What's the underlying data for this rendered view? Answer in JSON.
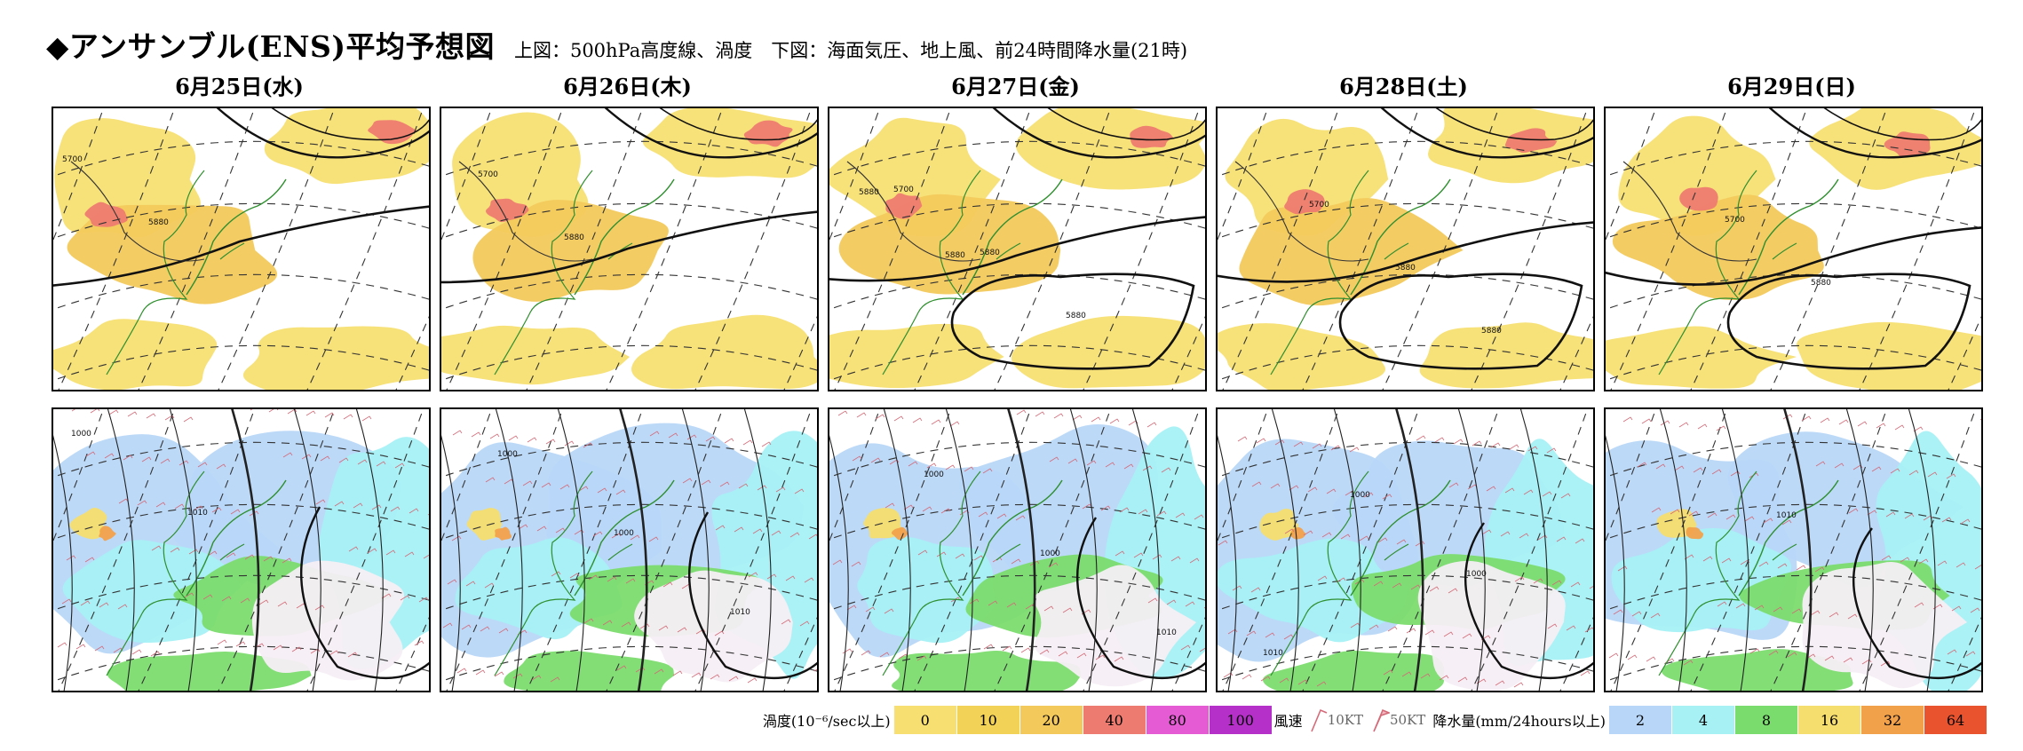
{
  "page": {
    "title": "◆アンサンブル(ENS)平均予想図",
    "subtitle": "上図：500hPa高度線、渦度　下図：海面気圧、地上風、前24時間降水量(21時)"
  },
  "days": [
    {
      "label": "6月25日(水)",
      "upper_contours": [
        "5700",
        "5880"
      ],
      "lower_contours": [
        "1000",
        "1010"
      ]
    },
    {
      "label": "6月26日(木)",
      "upper_contours": [
        "5700",
        "5880"
      ],
      "lower_contours": [
        "1000",
        "1000",
        "1010"
      ]
    },
    {
      "label": "6月27日(金)",
      "upper_contours": [
        "5700",
        "5880",
        "5880",
        "5880",
        "5880"
      ],
      "lower_contours": [
        "1000",
        "1000",
        "1010"
      ]
    },
    {
      "label": "6月28日(土)",
      "upper_contours": [
        "5700",
        "5880",
        "5880"
      ],
      "lower_contours": [
        "1000",
        "1000",
        "1010"
      ]
    },
    {
      "label": "6月29日(日)",
      "upper_contours": [
        "5700",
        "5880"
      ],
      "lower_contours": [
        "1010"
      ]
    }
  ],
  "legend": {
    "vorticity_label": "渦度(10⁻⁶/sec以上)",
    "vorticity": [
      {
        "value": "0",
        "color": "#f7df72"
      },
      {
        "value": "10",
        "color": "#f2d357"
      },
      {
        "value": "20",
        "color": "#f3c95c"
      },
      {
        "value": "40",
        "color": "#ee7b70"
      },
      {
        "value": "80",
        "color": "#e55bd4"
      },
      {
        "value": "100",
        "color": "#b530c8"
      }
    ],
    "wind_label": "風速",
    "wind": [
      {
        "value": "10KT",
        "icon": "wind-barb-10kt-icon"
      },
      {
        "value": "50KT",
        "icon": "wind-barb-50kt-icon"
      }
    ],
    "precip_label": "降水量(mm/24hours以上)",
    "precip": [
      {
        "value": "2",
        "color": "#b8d7f8"
      },
      {
        "value": "4",
        "color": "#a7f1f5"
      },
      {
        "value": "8",
        "color": "#7bdc6e"
      },
      {
        "value": "16",
        "color": "#f5dd6e"
      },
      {
        "value": "32",
        "color": "#f2a14b"
      },
      {
        "value": "64",
        "color": "#e9542e"
      }
    ]
  }
}
